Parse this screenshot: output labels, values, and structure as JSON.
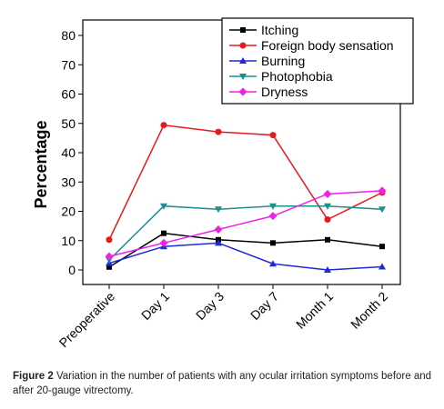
{
  "caption": {
    "label": "Figure 2",
    "text": "Variation in the number of patients with any ocular irritation symptoms before and after 20-gauge vitrectomy."
  },
  "chart_data": {
    "type": "line",
    "categories": [
      "Preoperative",
      "Day 1",
      "Day 3",
      "Day 7",
      "Month 1",
      "Month 2"
    ],
    "ylabel": "Percentage",
    "xlabel": "",
    "ylim": [
      0,
      80
    ],
    "yticks": [
      0,
      10,
      20,
      30,
      40,
      50,
      60,
      70,
      80
    ],
    "grid": false,
    "legend_position": "top-right",
    "series": [
      {
        "name": "Itching",
        "color": "#000000",
        "marker": "square",
        "values": [
          1.0,
          12.5,
          10.3,
          9.2,
          10.3,
          8.0
        ]
      },
      {
        "name": "Foreign body sensation",
        "color": "#e8191b",
        "marker": "circle",
        "values": [
          10.3,
          49.4,
          47.1,
          46.0,
          17.2,
          26.4
        ]
      },
      {
        "name": "Burning",
        "color": "#1f2ad6",
        "marker": "triangle-up",
        "values": [
          2.3,
          8.0,
          9.2,
          2.1,
          0.0,
          1.1
        ]
      },
      {
        "name": "Photophobia",
        "color": "#1a8f8f",
        "marker": "triangle-down",
        "values": [
          3.4,
          21.8,
          20.7,
          21.8,
          21.8,
          20.7
        ]
      },
      {
        "name": "Dryness",
        "color": "#f020e8",
        "marker": "diamond",
        "values": [
          4.6,
          9.2,
          13.8,
          18.4,
          25.9,
          27.0
        ]
      }
    ]
  }
}
